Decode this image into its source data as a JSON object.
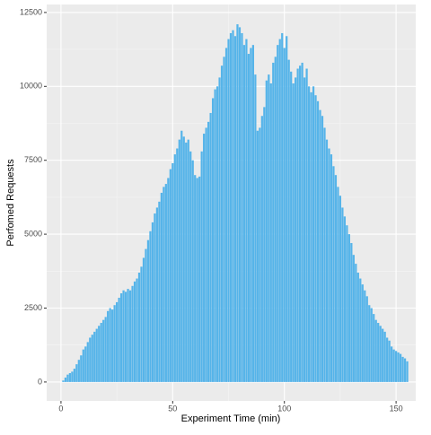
{
  "chart_data": {
    "type": "bar",
    "x_label": "Experiment Time (min)",
    "y_label": "Perfomed Requests",
    "color": "#56B4E9",
    "x": [
      1,
      2,
      3,
      4,
      5,
      6,
      7,
      8,
      9,
      10,
      11,
      12,
      13,
      14,
      15,
      16,
      17,
      18,
      19,
      20,
      21,
      22,
      23,
      24,
      25,
      26,
      27,
      28,
      29,
      30,
      31,
      32,
      33,
      34,
      35,
      36,
      37,
      38,
      39,
      40,
      41,
      42,
      43,
      44,
      45,
      46,
      47,
      48,
      49,
      50,
      51,
      52,
      53,
      54,
      55,
      56,
      57,
      58,
      59,
      60,
      61,
      62,
      63,
      64,
      65,
      66,
      67,
      68,
      69,
      70,
      71,
      72,
      73,
      74,
      75,
      76,
      77,
      78,
      79,
      80,
      81,
      82,
      83,
      84,
      85,
      86,
      87,
      88,
      89,
      90,
      91,
      92,
      93,
      94,
      95,
      96,
      97,
      98,
      99,
      100,
      101,
      102,
      103,
      104,
      105,
      106,
      107,
      108,
      109,
      110,
      111,
      112,
      113,
      114,
      115,
      116,
      117,
      118,
      119,
      120,
      121,
      122,
      123,
      124,
      125,
      126,
      127,
      128,
      129,
      130,
      131,
      132,
      133,
      134,
      135,
      136,
      137,
      138,
      139,
      140,
      141,
      142,
      143,
      144,
      145,
      146,
      147,
      148,
      149,
      150,
      151,
      152,
      153,
      154,
      155
    ],
    "values": [
      50,
      150,
      250,
      300,
      350,
      450,
      600,
      750,
      900,
      1100,
      1200,
      1350,
      1500,
      1600,
      1700,
      1800,
      1900,
      2000,
      2100,
      2200,
      2400,
      2500,
      2450,
      2600,
      2700,
      2850,
      3000,
      3100,
      3050,
      3150,
      3100,
      3250,
      3400,
      3500,
      3700,
      3900,
      4200,
      4500,
      4800,
      5100,
      5400,
      5700,
      5900,
      6100,
      6400,
      6600,
      6700,
      6900,
      7200,
      7400,
      7700,
      7900,
      8200,
      8500,
      8300,
      8100,
      8200,
      7800,
      7500,
      7000,
      6900,
      6950,
      7800,
      8400,
      8600,
      8800,
      9100,
      9600,
      9900,
      10000,
      10300,
      10700,
      11000,
      11300,
      11600,
      11800,
      11900,
      11700,
      12100,
      12000,
      11800,
      11400,
      11600,
      11100,
      11300,
      11400,
      10400,
      8500,
      8600,
      9000,
      9300,
      10200,
      10400,
      10100,
      10800,
      11000,
      11400,
      11600,
      11800,
      11300,
      11700,
      10900,
      10500,
      10100,
      10300,
      10600,
      10700,
      10800,
      10300,
      10600,
      10000,
      9800,
      10000,
      9700,
      9500,
      9200,
      9000,
      8600,
      8200,
      7900,
      7700,
      7300,
      7000,
      6600,
      6300,
      5900,
      5600,
      5300,
      5000,
      4700,
      4300,
      4000,
      3700,
      3500,
      3300,
      3100,
      2900,
      2600,
      2500,
      2300,
      2100,
      2000,
      1900,
      1800,
      1700,
      1500,
      1400,
      1200,
      1100,
      1050,
      1000,
      950,
      850,
      800,
      700
    ],
    "xlim": [
      -6.4,
      158.8
    ],
    "ylim": [
      -640,
      12770
    ],
    "xticks": [
      0,
      50,
      100,
      150
    ],
    "yticks": [
      0,
      2500,
      5000,
      7500,
      10000,
      12500
    ],
    "x_minor_ticks": [
      25,
      75,
      125
    ],
    "y_minor_ticks": [
      1250,
      3750,
      6250,
      8750,
      11250
    ],
    "grid": true
  }
}
